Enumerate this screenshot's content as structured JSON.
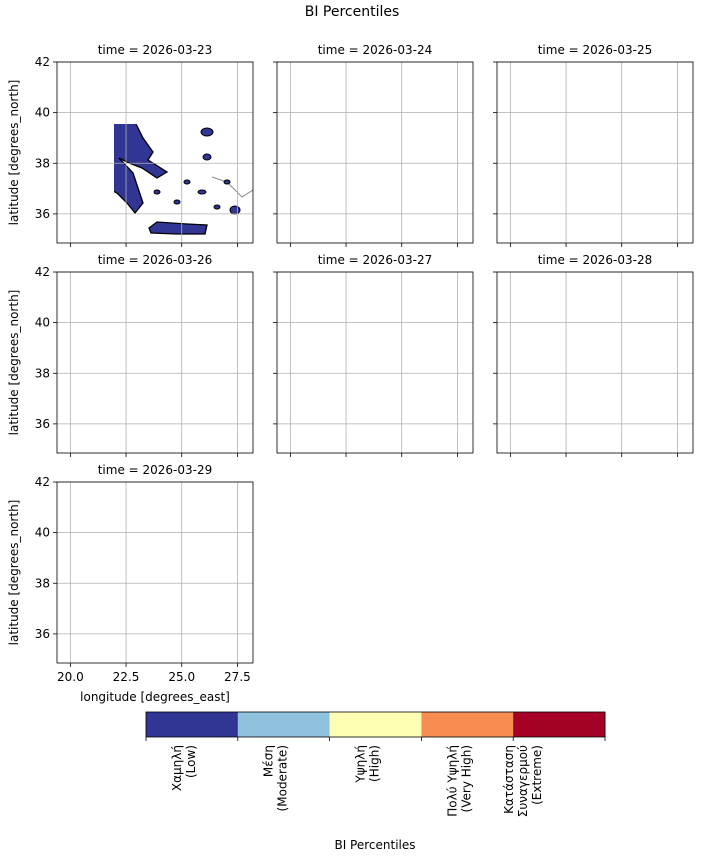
{
  "chart_data": {
    "type": "map",
    "title": "BI Percentiles",
    "panels": [
      {
        "title": "time = 2026-03-23"
      },
      {
        "title": "time = 2026-03-24"
      },
      {
        "title": "time = 2026-03-25"
      },
      {
        "title": "time = 2026-03-26"
      },
      {
        "title": "time = 2026-03-27"
      },
      {
        "title": "time = 2026-03-28"
      },
      {
        "title": "time = 2026-03-29"
      }
    ],
    "xlabel": "longitude [degrees_east]",
    "ylabel": "latitude [degrees_north]",
    "xlim": [
      19.4,
      28.2
    ],
    "ylim": [
      34.85,
      42
    ],
    "xticks": [
      {
        "value": 20,
        "label": "20.0"
      },
      {
        "value": 22.5,
        "label": "22.5"
      },
      {
        "value": 25,
        "label": "25.0"
      },
      {
        "value": 27.5,
        "label": "27.5"
      }
    ],
    "yticks": [
      36,
      38,
      40,
      42
    ],
    "grid": true,
    "colorbar": {
      "label": "BI Percentiles",
      "categories": [
        [
          "Χαμηλή",
          "(Low)"
        ],
        [
          "Μέση",
          "(Moderate)"
        ],
        [
          "Υψηλή",
          "(High)"
        ],
        [
          "Πολύ Υψηλή",
          "(Very High)"
        ],
        [
          "Κατάσταση",
          "Συναγερμού",
          "(Extreme)"
        ]
      ],
      "colors": [
        "#313695",
        "#8fc3dd",
        "#feffb3",
        "#f88d52",
        "#a50026"
      ]
    }
  }
}
